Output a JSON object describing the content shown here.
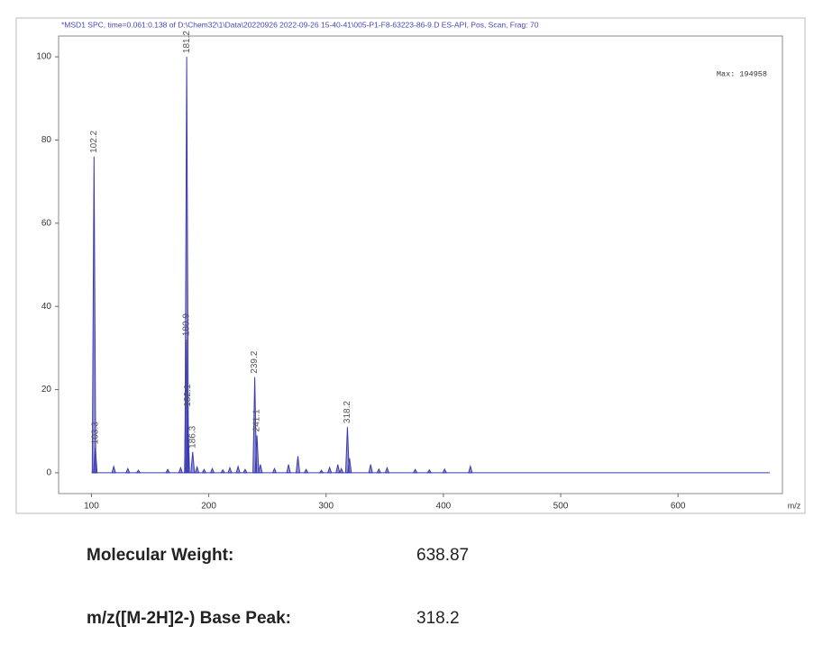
{
  "chart_data": {
    "type": "spectrum",
    "title": "*MSD1 SPC, time=0.061:0.138 of D:\\Chem32\\1\\Data\\20220926 2022-09-26 15-40-41\\005-P1-F8-63223-86-9.D    ES-API, Pos, Scan, Frag: 70",
    "annotation": "Max: 194958",
    "x_label": "m/z",
    "color": "#3b3bb0",
    "xlim": [
      72,
      689
    ],
    "ylim": [
      -5,
      105
    ],
    "xticks": [
      100,
      200,
      300,
      400,
      500,
      600
    ],
    "yticks": [
      0,
      20,
      40,
      60,
      80,
      100
    ],
    "series": [
      {
        "x": [
          102.2,
          103.3,
          180.9,
          181.2,
          182.1,
          186.3,
          239.2,
          241.1,
          318.2
        ],
        "values": [
          76,
          6,
          32,
          100,
          15,
          5,
          23,
          9,
          11
        ]
      },
      {
        "x": [
          119,
          131,
          140,
          165,
          176,
          190,
          196,
          203,
          212,
          218,
          225,
          231,
          244,
          256,
          268,
          276,
          283,
          296,
          303,
          310,
          313,
          320,
          338,
          345,
          352,
          376,
          388,
          401,
          423
        ],
        "values": [
          1.5,
          1,
          0.6,
          0.8,
          1.2,
          1.4,
          0.8,
          1,
          0.7,
          1.2,
          1.5,
          0.8,
          2,
          1,
          2,
          4,
          0.8,
          0.6,
          1.3,
          2,
          1,
          3.5,
          2,
          0.9,
          1.2,
          0.8,
          0.7,
          0.9,
          1.6
        ]
      }
    ]
  },
  "info": [
    {
      "label": "Molecular Weight:",
      "value": "638.87"
    },
    {
      "label": "m/z([M-2H]2-) Base Peak:",
      "value": "318.2"
    }
  ]
}
